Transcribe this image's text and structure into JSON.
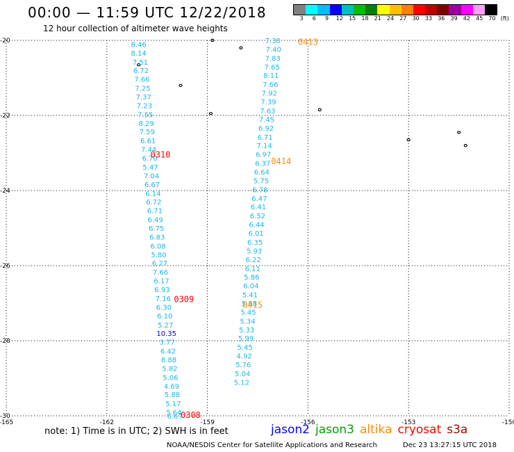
{
  "header": {
    "title": "00:00 — 11:59 UTC 12/22/2018",
    "subtitle": "12 hour collection of altimeter wave heights"
  },
  "legend": {
    "colors": [
      "#808080",
      "#00ffff",
      "#00bfff",
      "#0000ff",
      "#00bfbf",
      "#00bf00",
      "#008000",
      "#ffff00",
      "#ffbf00",
      "#ff8000",
      "#ff0000",
      "#bf0000",
      "#800000",
      "#a000a0",
      "#ff00ff",
      "#ffa0ff",
      "#000000"
    ],
    "labels": [
      "3",
      "6",
      "9",
      "12",
      "15",
      "18",
      "21",
      "24",
      "27",
      "30",
      "33",
      "36",
      "39",
      "42",
      "45",
      "70",
      "(ft)"
    ]
  },
  "map_data": {
    "lon_ticks": [
      "-165",
      "-162",
      "-159",
      "-156",
      "-153",
      "-150"
    ],
    "lat_ticks": [
      "-20",
      "-22",
      "-24",
      "-26",
      "-28",
      "-30"
    ],
    "lon_range": [
      -165,
      -150
    ],
    "lat_range": [
      -30,
      -20
    ],
    "tracks": [
      {
        "color": "#1ab5e6",
        "points": [
          {
            "lon": -161.05,
            "lat": -20.1,
            "v": "8.46"
          },
          {
            "lon": -161.05,
            "lat": -20.33,
            "v": "8.14"
          },
          {
            "lon": -161.0,
            "lat": -20.57,
            "v": "7.51"
          },
          {
            "lon": -160.98,
            "lat": -20.8,
            "v": "6.72"
          },
          {
            "lon": -160.95,
            "lat": -21.03,
            "v": "7.66"
          },
          {
            "lon": -160.93,
            "lat": -21.27,
            "v": "7.25"
          },
          {
            "lon": -160.9,
            "lat": -21.5,
            "v": "7.37"
          },
          {
            "lon": -160.88,
            "lat": -21.73,
            "v": "7.23"
          },
          {
            "lon": -160.85,
            "lat": -21.97,
            "v": "7.55"
          },
          {
            "lon": -160.82,
            "lat": -22.2,
            "v": "8.29"
          },
          {
            "lon": -160.8,
            "lat": -22.43,
            "v": "7.59"
          },
          {
            "lon": -160.77,
            "lat": -22.67,
            "v": "6.61"
          },
          {
            "lon": -160.75,
            "lat": -22.9,
            "v": "7.44"
          },
          {
            "lon": -160.72,
            "lat": -23.13,
            "v": "6.70"
          },
          {
            "lon": -160.7,
            "lat": -23.37,
            "v": "5.47"
          },
          {
            "lon": -160.67,
            "lat": -23.6,
            "v": "7.04"
          },
          {
            "lon": -160.65,
            "lat": -23.83,
            "v": "6.67"
          },
          {
            "lon": -160.62,
            "lat": -24.07,
            "v": "6.14"
          },
          {
            "lon": -160.6,
            "lat": -24.3,
            "v": "6.72"
          },
          {
            "lon": -160.57,
            "lat": -24.53,
            "v": "6.71"
          },
          {
            "lon": -160.55,
            "lat": -24.77,
            "v": "6.49"
          },
          {
            "lon": -160.52,
            "lat": -25.0,
            "v": "6.75"
          },
          {
            "lon": -160.5,
            "lat": -25.23,
            "v": "6.83"
          },
          {
            "lon": -160.47,
            "lat": -25.47,
            "v": "6.08"
          },
          {
            "lon": -160.45,
            "lat": -25.7,
            "v": "5.80"
          },
          {
            "lon": -160.42,
            "lat": -25.93,
            "v": "6.27"
          },
          {
            "lon": -160.4,
            "lat": -26.17,
            "v": "7.66"
          },
          {
            "lon": -160.37,
            "lat": -26.4,
            "v": "6.17"
          },
          {
            "lon": -160.35,
            "lat": -26.63,
            "v": "6.93"
          },
          {
            "lon": -160.32,
            "lat": -26.87,
            "v": "7.16"
          },
          {
            "lon": -160.3,
            "lat": -27.1,
            "v": "6.30"
          },
          {
            "lon": -160.27,
            "lat": -27.33,
            "v": "6.10"
          },
          {
            "lon": -160.25,
            "lat": -27.57,
            "v": "5.27"
          },
          {
            "lon": -160.22,
            "lat": -27.8,
            "v": "10.35",
            "color": "#0000c8"
          },
          {
            "lon": -160.2,
            "lat": -28.03,
            "v": "3.77"
          },
          {
            "lon": -160.17,
            "lat": -28.27,
            "v": "6.42"
          },
          {
            "lon": -160.15,
            "lat": -28.5,
            "v": "8.88"
          },
          {
            "lon": -160.12,
            "lat": -28.73,
            "v": "5.82"
          },
          {
            "lon": -160.1,
            "lat": -28.97,
            "v": "5.06"
          },
          {
            "lon": -160.07,
            "lat": -29.2,
            "v": "4.69"
          },
          {
            "lon": -160.05,
            "lat": -29.43,
            "v": "5.88"
          },
          {
            "lon": -160.02,
            "lat": -29.67,
            "v": "5.17"
          },
          {
            "lon": -160.0,
            "lat": -29.9,
            "v": "5.64"
          },
          {
            "lon": -159.97,
            "lat": -30.0,
            "v": "6.67"
          }
        ]
      },
      {
        "color": "#1ab5e6",
        "points": [
          {
            "lon": -157.05,
            "lat": -20.0,
            "v": "7.38"
          },
          {
            "lon": -157.03,
            "lat": -20.23,
            "v": "7.40"
          },
          {
            "lon": -157.05,
            "lat": -20.47,
            "v": "7.83"
          },
          {
            "lon": -157.07,
            "lat": -20.7,
            "v": "7.65"
          },
          {
            "lon": -157.1,
            "lat": -20.93,
            "v": "8.11"
          },
          {
            "lon": -157.12,
            "lat": -21.17,
            "v": "7.66"
          },
          {
            "lon": -157.15,
            "lat": -21.4,
            "v": "7.92"
          },
          {
            "lon": -157.18,
            "lat": -21.63,
            "v": "7.39"
          },
          {
            "lon": -157.2,
            "lat": -21.87,
            "v": "7.63"
          },
          {
            "lon": -157.23,
            "lat": -22.1,
            "v": "7.45"
          },
          {
            "lon": -157.25,
            "lat": -22.33,
            "v": "6.92"
          },
          {
            "lon": -157.28,
            "lat": -22.57,
            "v": "6.71"
          },
          {
            "lon": -157.3,
            "lat": -22.8,
            "v": "7.14"
          },
          {
            "lon": -157.33,
            "lat": -23.03,
            "v": "6.97"
          },
          {
            "lon": -157.35,
            "lat": -23.27,
            "v": "6.37"
          },
          {
            "lon": -157.38,
            "lat": -23.5,
            "v": "6.64"
          },
          {
            "lon": -157.4,
            "lat": -23.73,
            "v": "5.75"
          },
          {
            "lon": -157.43,
            "lat": -23.97,
            "v": "6.78"
          },
          {
            "lon": -157.45,
            "lat": -24.2,
            "v": "6.47"
          },
          {
            "lon": -157.48,
            "lat": -24.43,
            "v": "6.41"
          },
          {
            "lon": -157.5,
            "lat": -24.67,
            "v": "6.52"
          },
          {
            "lon": -157.53,
            "lat": -24.9,
            "v": "6.44"
          },
          {
            "lon": -157.55,
            "lat": -25.13,
            "v": "6.01"
          },
          {
            "lon": -157.58,
            "lat": -25.37,
            "v": "6.35"
          },
          {
            "lon": -157.6,
            "lat": -25.6,
            "v": "5.93"
          },
          {
            "lon": -157.63,
            "lat": -25.83,
            "v": "6.22"
          },
          {
            "lon": -157.65,
            "lat": -26.07,
            "v": "6.11"
          },
          {
            "lon": -157.68,
            "lat": -26.3,
            "v": "5.86"
          },
          {
            "lon": -157.7,
            "lat": -26.53,
            "v": "6.04"
          },
          {
            "lon": -157.73,
            "lat": -26.77,
            "v": "5.41"
          },
          {
            "lon": -157.75,
            "lat": -27.0,
            "v": "5.68"
          },
          {
            "lon": -157.78,
            "lat": -27.23,
            "v": "5.45"
          },
          {
            "lon": -157.8,
            "lat": -27.47,
            "v": "5.34"
          },
          {
            "lon": -157.83,
            "lat": -27.7,
            "v": "5.33"
          },
          {
            "lon": -157.85,
            "lat": -27.93,
            "v": "5.99"
          },
          {
            "lon": -157.88,
            "lat": -28.17,
            "v": "5.45"
          },
          {
            "lon": -157.9,
            "lat": -28.4,
            "v": "4.92"
          },
          {
            "lon": -157.93,
            "lat": -28.63,
            "v": "5.76"
          },
          {
            "lon": -157.95,
            "lat": -28.87,
            "v": "5.04"
          },
          {
            "lon": -157.98,
            "lat": -29.1,
            "v": "5.12"
          }
        ]
      }
    ],
    "pass_labels": [
      {
        "text": "0413",
        "lon": -156.0,
        "lat": -20.05,
        "color": "#ff8c00"
      },
      {
        "text": "0414",
        "lon": -156.8,
        "lat": -23.22,
        "color": "#ff8c00"
      },
      {
        "text": "0415",
        "lon": -157.65,
        "lat": -27.05,
        "color": "#ff8c00"
      },
      {
        "text": "0310",
        "lon": -160.4,
        "lat": -23.05,
        "color": "#ff0000"
      },
      {
        "text": "0309",
        "lon": -159.7,
        "lat": -26.9,
        "color": "#ff0000"
      },
      {
        "text": "0308",
        "lon": -159.5,
        "lat": -29.98,
        "color": "#ff0000"
      }
    ],
    "islands": [
      {
        "lon": -159.8,
        "lat": -21.2
      },
      {
        "lon": -161.05,
        "lat": -20.65
      },
      {
        "lon": -158.85,
        "lat": -20.0
      },
      {
        "lon": -158.0,
        "lat": -20.2
      },
      {
        "lon": -158.9,
        "lat": -21.95
      },
      {
        "lon": -155.65,
        "lat": -21.85
      },
      {
        "lon": -153.0,
        "lat": -22.65
      },
      {
        "lon": -151.5,
        "lat": -22.45
      },
      {
        "lon": -151.3,
        "lat": -22.8
      }
    ]
  },
  "note": "note: 1) Time is in UTC; 2) SWH is in feet",
  "satellites": [
    {
      "name": "jason2",
      "color": "#0000ff"
    },
    {
      "name": "jason3",
      "color": "#00a000"
    },
    {
      "name": "altika",
      "color": "#ff8c00"
    },
    {
      "name": "cryosat",
      "color": "#ff0000"
    },
    {
      "name": "s3a",
      "color": "#b00000"
    }
  ],
  "footer": {
    "credit": "NOAA/NESDIS Center for Satellite Applications and Research",
    "timestamp": "Dec 23 13:27:15 UTC 2018"
  }
}
